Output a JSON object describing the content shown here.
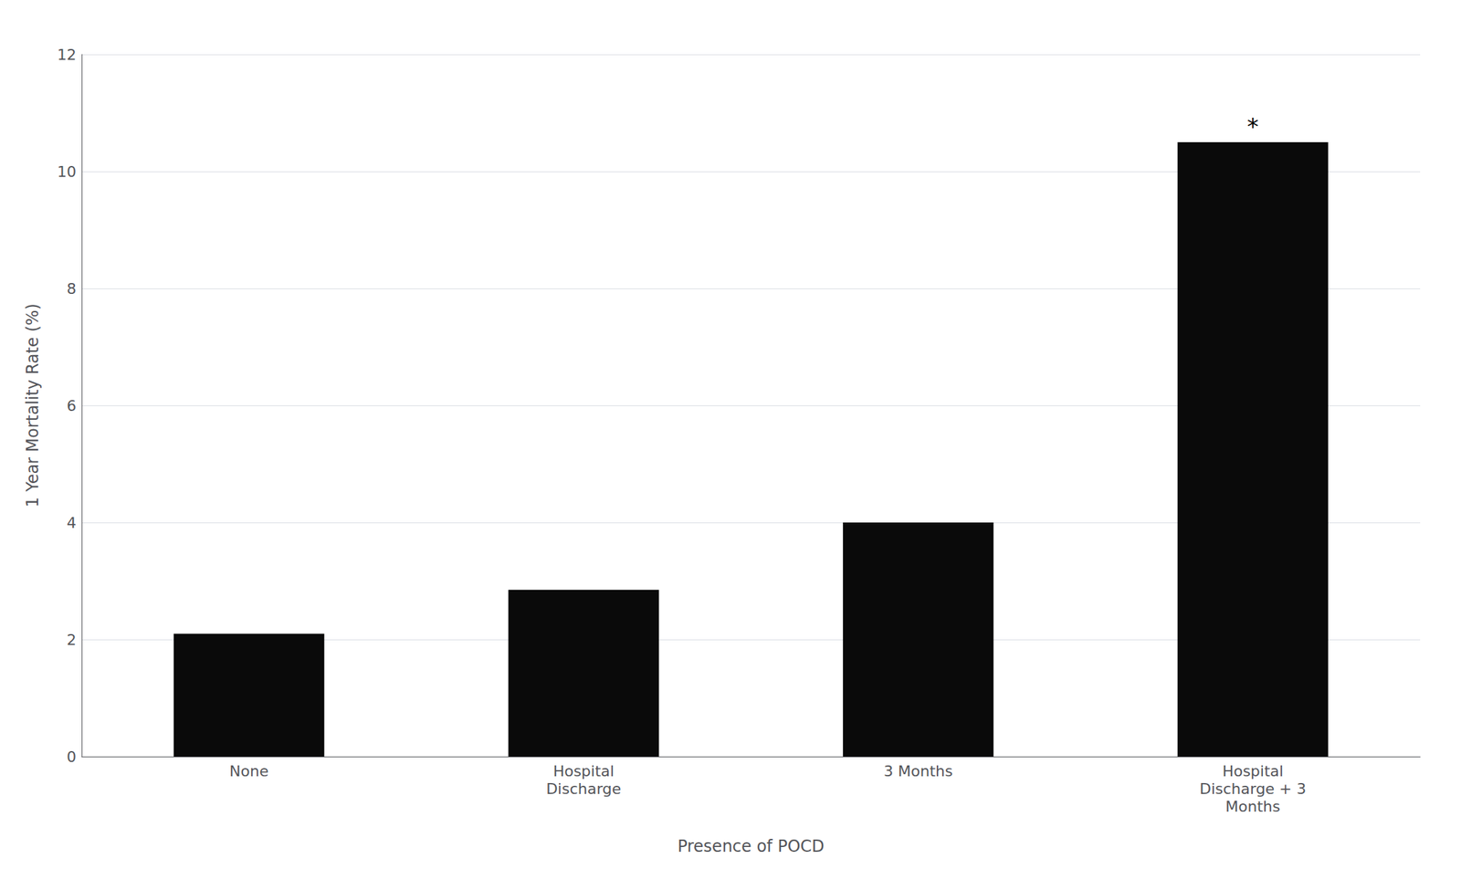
{
  "chart_data": {
    "type": "bar",
    "categories": [
      "None",
      "Hospital\nDischarge",
      "3 Months",
      "Hospital\nDischarge + 3\nMonths"
    ],
    "values": [
      2.1,
      2.85,
      4.0,
      10.5
    ],
    "color": "#0a0a0a",
    "xlabel": "Presence of POCD",
    "ylabel": "1 Year Mortality Rate (%)",
    "ylim": [
      0,
      12
    ],
    "yticks": [
      0,
      2,
      4,
      6,
      8,
      10,
      12
    ],
    "grid": true,
    "annotations": [
      {
        "text": "*",
        "category": "Hospital\nDischarge + 3\nMonths"
      }
    ]
  }
}
